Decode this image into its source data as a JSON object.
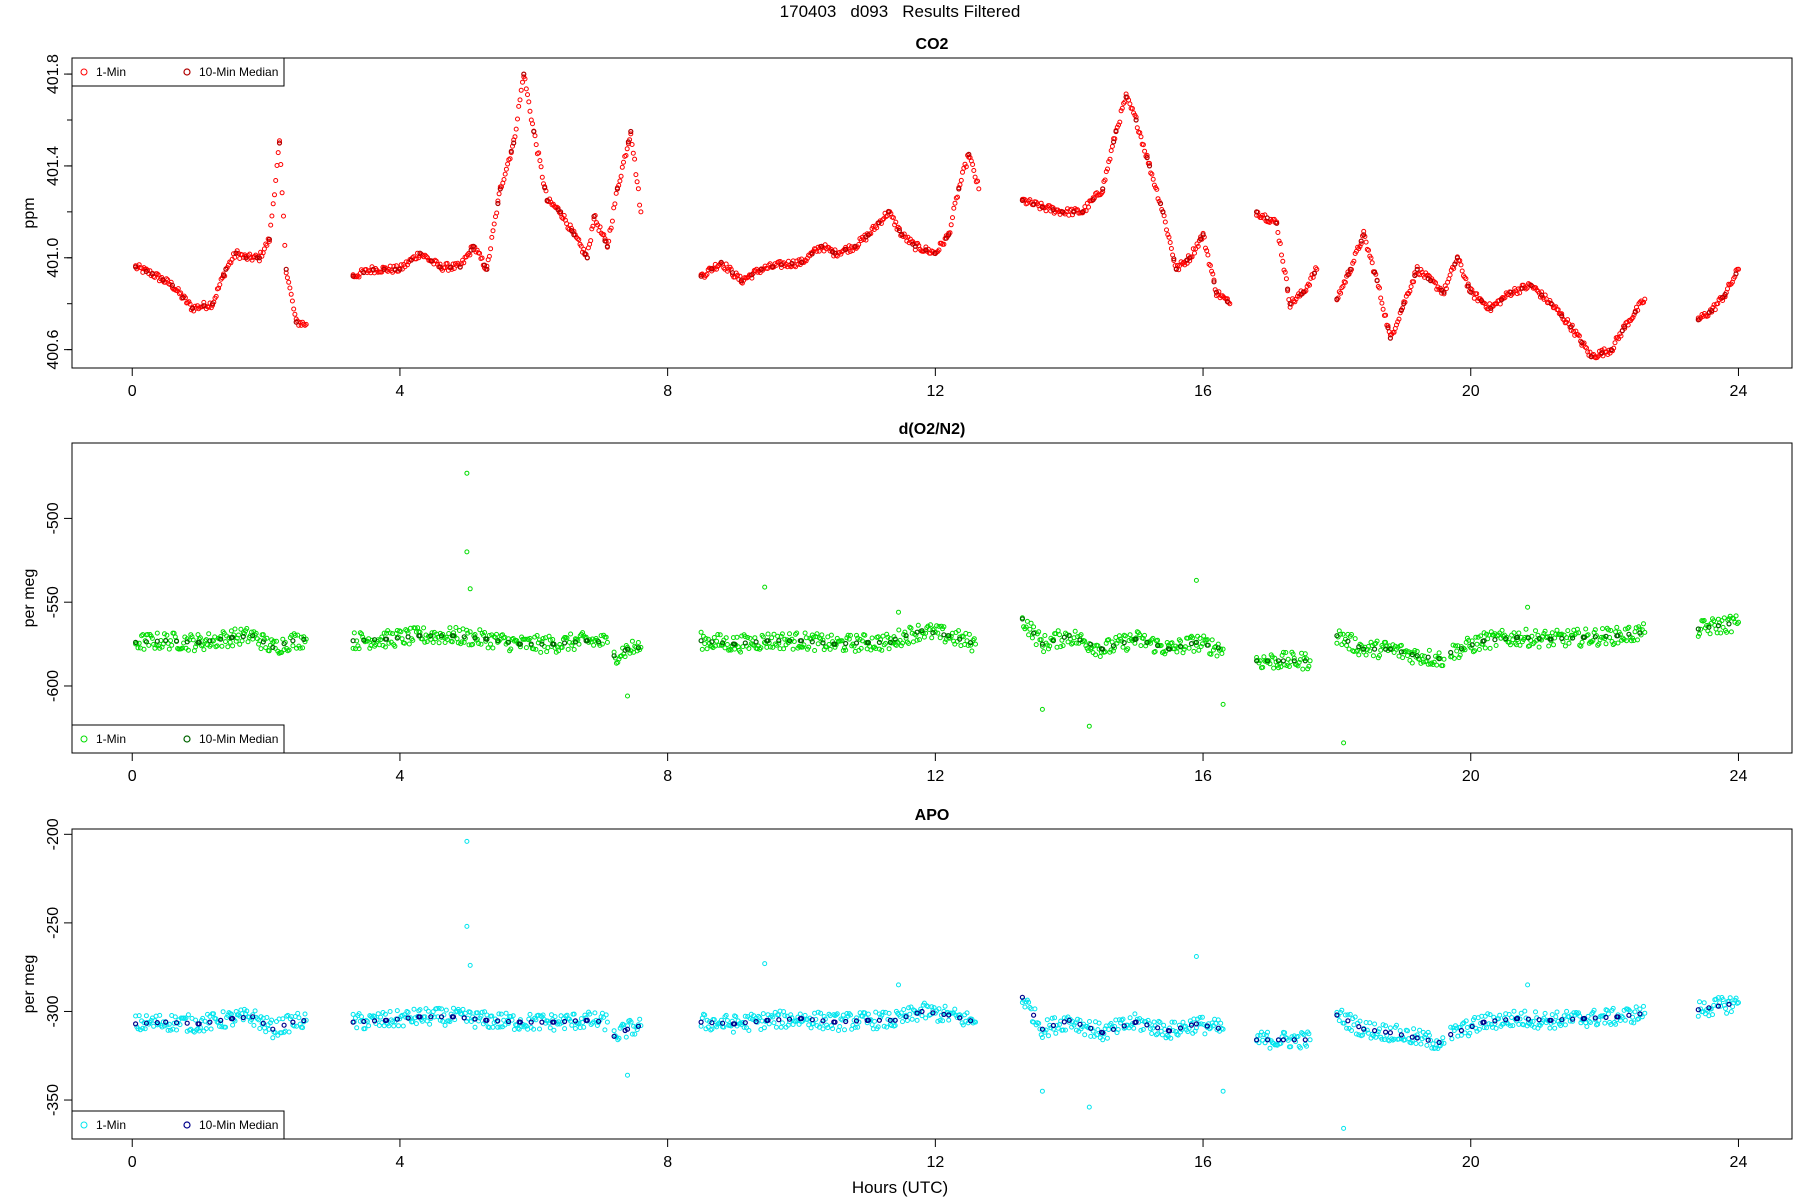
{
  "header": {
    "date": "170403",
    "site": "d093",
    "status": "Results Filtered"
  },
  "x_axis_label": "Hours (UTC)",
  "chart_data": [
    {
      "type": "scatter",
      "title": "CO2",
      "ylabel": "ppm",
      "xlabel": "Hours (UTC)",
      "xlim": [
        -0.9,
        24.8
      ],
      "ylim": [
        400.52,
        401.87
      ],
      "xticks": [
        0,
        4,
        8,
        12,
        16,
        20,
        24
      ],
      "yticks": [
        400.6,
        401.0,
        401.4,
        401.8
      ],
      "ytick_labels": [
        "400.6",
        "401.0",
        "401.4",
        "401.8"
      ],
      "legend_position": "top-left",
      "grid": false,
      "series": [
        {
          "name": "1-Min",
          "color": "#ff0000",
          "role": "points"
        },
        {
          "name": "10-Min Median",
          "color": "#b00000",
          "role": "median"
        }
      ],
      "segments": [
        {
          "x": [
            0.05,
            0.3,
            0.6,
            0.9,
            1.2,
            1.4,
            1.55,
            1.7,
            1.9,
            2.05,
            2.2,
            2.3,
            2.45,
            2.6
          ],
          "y": [
            400.96,
            400.93,
            400.88,
            400.78,
            400.8,
            400.95,
            401.02,
            401.0,
            401.0,
            401.08,
            401.5,
            400.95,
            400.72,
            400.71
          ]
        },
        {
          "x": [
            3.3,
            3.6,
            4.0,
            4.3,
            4.6,
            4.9,
            5.1,
            5.3,
            5.5,
            5.7,
            5.85,
            6.0,
            6.2,
            6.4,
            6.6,
            6.8,
            6.9,
            7.1,
            7.25,
            7.45,
            7.6
          ],
          "y": [
            400.92,
            400.95,
            400.95,
            401.02,
            400.96,
            400.96,
            401.05,
            400.95,
            401.3,
            401.5,
            401.8,
            401.55,
            401.25,
            401.2,
            401.1,
            401.0,
            401.18,
            401.05,
            401.3,
            401.55,
            401.2
          ]
        },
        {
          "x": [
            8.5,
            8.8,
            9.1,
            9.4,
            9.7,
            10.0,
            10.3,
            10.5,
            10.8,
            11.0,
            11.3,
            11.5,
            11.7,
            12.0,
            12.2,
            12.35,
            12.5,
            12.65
          ],
          "y": [
            400.92,
            400.98,
            400.9,
            400.95,
            400.97,
            400.98,
            401.05,
            401.02,
            401.05,
            401.1,
            401.2,
            401.1,
            401.05,
            401.02,
            401.1,
            401.3,
            401.45,
            401.3
          ]
        },
        {
          "x": [
            13.3,
            13.6,
            13.9,
            14.2,
            14.5,
            14.7,
            14.85,
            15.0,
            15.2,
            15.4,
            15.6,
            15.8,
            16.0,
            16.2,
            16.4
          ],
          "y": [
            401.25,
            401.22,
            401.2,
            401.2,
            401.3,
            401.55,
            401.7,
            401.6,
            401.4,
            401.2,
            400.95,
            401.0,
            401.1,
            400.85,
            400.8
          ]
        },
        {
          "x": [
            16.8,
            17.1,
            17.3,
            17.5,
            17.7
          ],
          "y": [
            401.2,
            401.15,
            400.8,
            400.85,
            400.95
          ]
        },
        {
          "x": [
            18.0,
            18.2,
            18.4,
            18.6,
            18.8,
            19.0,
            19.2,
            19.4,
            19.6,
            19.8,
            20.0,
            20.3,
            20.6,
            20.9,
            21.2,
            21.5,
            21.8,
            22.1,
            22.3,
            22.6
          ],
          "y": [
            400.82,
            400.95,
            401.1,
            400.9,
            400.65,
            400.8,
            400.95,
            400.9,
            400.85,
            401.0,
            400.85,
            400.78,
            400.85,
            400.88,
            400.8,
            400.7,
            400.57,
            400.6,
            400.7,
            400.82
          ]
        },
        {
          "x": [
            23.4,
            23.6,
            23.8,
            24.0
          ],
          "y": [
            400.73,
            400.77,
            400.84,
            400.95
          ]
        }
      ]
    },
    {
      "type": "scatter",
      "title": "d(O2/N2)",
      "ylabel": "per meg",
      "xlabel": "Hours (UTC)",
      "xlim": [
        -0.9,
        24.8
      ],
      "ylim": [
        -640,
        -455
      ],
      "xticks": [
        0,
        4,
        8,
        12,
        16,
        20,
        24
      ],
      "yticks": [
        -600,
        -550,
        -500
      ],
      "ytick_labels": [
        "-600",
        "-550",
        "-500"
      ],
      "legend_position": "bottom-left",
      "grid": false,
      "series": [
        {
          "name": "1-Min",
          "color": "#00dd00",
          "role": "points"
        },
        {
          "name": "10-Min Median",
          "color": "#006400",
          "role": "median"
        }
      ],
      "outliers": [
        [
          5.0,
          -473
        ],
        [
          5.0,
          -520
        ],
        [
          5.05,
          -542
        ],
        [
          9.45,
          -541
        ],
        [
          15.9,
          -537
        ],
        [
          7.4,
          -606
        ],
        [
          14.3,
          -624
        ],
        [
          18.1,
          -634
        ],
        [
          16.3,
          -611
        ],
        [
          13.6,
          -614
        ],
        [
          11.45,
          -556
        ],
        [
          20.85,
          -553
        ]
      ],
      "segments": [
        {
          "x": [
            0.05,
            0.5,
            1.0,
            1.5,
            1.8,
            2.1,
            2.4,
            2.6
          ],
          "y": [
            -574,
            -573,
            -574,
            -571,
            -570,
            -577,
            -573,
            -572
          ]
        },
        {
          "x": [
            3.3,
            3.8,
            4.3,
            4.8,
            5.3,
            5.8,
            6.3,
            6.8,
            7.1
          ],
          "y": [
            -573,
            -572,
            -570,
            -570,
            -572,
            -575,
            -575,
            -573,
            -574
          ]
        },
        {
          "x": [
            7.2,
            7.4,
            7.6
          ],
          "y": [
            -582,
            -578,
            -577
          ]
        },
        {
          "x": [
            8.5,
            9.0,
            9.5,
            10.0,
            10.5,
            11.0,
            11.4
          ],
          "y": [
            -573,
            -575,
            -573,
            -573,
            -575,
            -574,
            -574
          ]
        },
        {
          "x": [
            11.4,
            11.8,
            12.2,
            12.6
          ],
          "y": [
            -572,
            -567,
            -570,
            -575
          ]
        },
        {
          "x": [
            13.3,
            13.6,
            14.0,
            14.5,
            15.0,
            15.5,
            15.9,
            16.3
          ],
          "y": [
            -560,
            -575,
            -570,
            -578,
            -572,
            -578,
            -574,
            -578
          ]
        },
        {
          "x": [
            16.8,
            17.2,
            17.6
          ],
          "y": [
            -585,
            -585,
            -585
          ]
        },
        {
          "x": [
            18.0,
            18.4,
            18.8,
            19.2,
            19.6
          ],
          "y": [
            -570,
            -578,
            -578,
            -582,
            -584
          ]
        },
        {
          "x": [
            19.7,
            20.2,
            20.7,
            21.2,
            21.7,
            22.2,
            22.6
          ],
          "y": [
            -580,
            -573,
            -571,
            -572,
            -571,
            -570,
            -568
          ]
        },
        {
          "x": [
            23.4,
            23.7,
            24.0
          ],
          "y": [
            -566,
            -564,
            -562
          ]
        }
      ]
    },
    {
      "type": "scatter",
      "title": "APO",
      "ylabel": "per meg",
      "xlabel": "Hours (UTC)",
      "xlim": [
        -0.9,
        24.8
      ],
      "ylim": [
        -372,
        -197
      ],
      "xticks": [
        0,
        4,
        8,
        12,
        16,
        20,
        24
      ],
      "yticks": [
        -350,
        -300,
        -250,
        -200
      ],
      "ytick_labels": [
        "-350",
        "-300",
        "-250",
        "-200"
      ],
      "legend_position": "bottom-left",
      "grid": false,
      "series": [
        {
          "name": "1-Min",
          "color": "#00e5ee",
          "role": "points"
        },
        {
          "name": "10-Min Median",
          "color": "#00008b",
          "role": "median"
        }
      ],
      "outliers": [
        [
          5.0,
          -204
        ],
        [
          5.0,
          -252
        ],
        [
          5.05,
          -274
        ],
        [
          9.45,
          -273
        ],
        [
          15.9,
          -269
        ],
        [
          7.4,
          -336
        ],
        [
          14.3,
          -354
        ],
        [
          18.1,
          -366
        ],
        [
          16.3,
          -345
        ],
        [
          13.6,
          -345
        ],
        [
          11.45,
          -285
        ],
        [
          20.85,
          -285
        ]
      ],
      "segments": [
        {
          "x": [
            0.05,
            0.5,
            1.0,
            1.5,
            1.8,
            2.1,
            2.4,
            2.6
          ],
          "y": [
            -307,
            -306,
            -307,
            -304,
            -303,
            -310,
            -306,
            -305
          ]
        },
        {
          "x": [
            3.3,
            3.8,
            4.3,
            4.8,
            5.3,
            5.8,
            6.3,
            6.8,
            7.1
          ],
          "y": [
            -306,
            -305,
            -303,
            -303,
            -305,
            -306,
            -306,
            -305,
            -306
          ]
        },
        {
          "x": [
            7.2,
            7.4,
            7.6
          ],
          "y": [
            -314,
            -310,
            -308
          ]
        },
        {
          "x": [
            8.5,
            9.0,
            9.5,
            10.0,
            10.5,
            11.0,
            11.4
          ],
          "y": [
            -306,
            -307,
            -305,
            -304,
            -306,
            -305,
            -305
          ]
        },
        {
          "x": [
            11.4,
            11.8,
            12.2,
            12.6
          ],
          "y": [
            -305,
            -300,
            -302,
            -306
          ]
        },
        {
          "x": [
            13.3,
            13.6,
            14.0,
            14.5,
            15.0,
            15.5,
            15.9,
            16.3
          ],
          "y": [
            -292,
            -310,
            -305,
            -312,
            -306,
            -311,
            -307,
            -310
          ]
        },
        {
          "x": [
            16.8,
            17.2,
            17.6
          ],
          "y": [
            -316,
            -316,
            -316
          ]
        },
        {
          "x": [
            18.0,
            18.4,
            18.8,
            19.2,
            19.6
          ],
          "y": [
            -302,
            -310,
            -312,
            -315,
            -318
          ]
        },
        {
          "x": [
            19.7,
            20.2,
            20.7,
            21.2,
            21.7,
            22.2,
            22.6
          ],
          "y": [
            -313,
            -306,
            -304,
            -305,
            -304,
            -303,
            -301
          ]
        },
        {
          "x": [
            23.4,
            23.7,
            24.0
          ],
          "y": [
            -299,
            -297,
            -295
          ]
        }
      ]
    }
  ]
}
